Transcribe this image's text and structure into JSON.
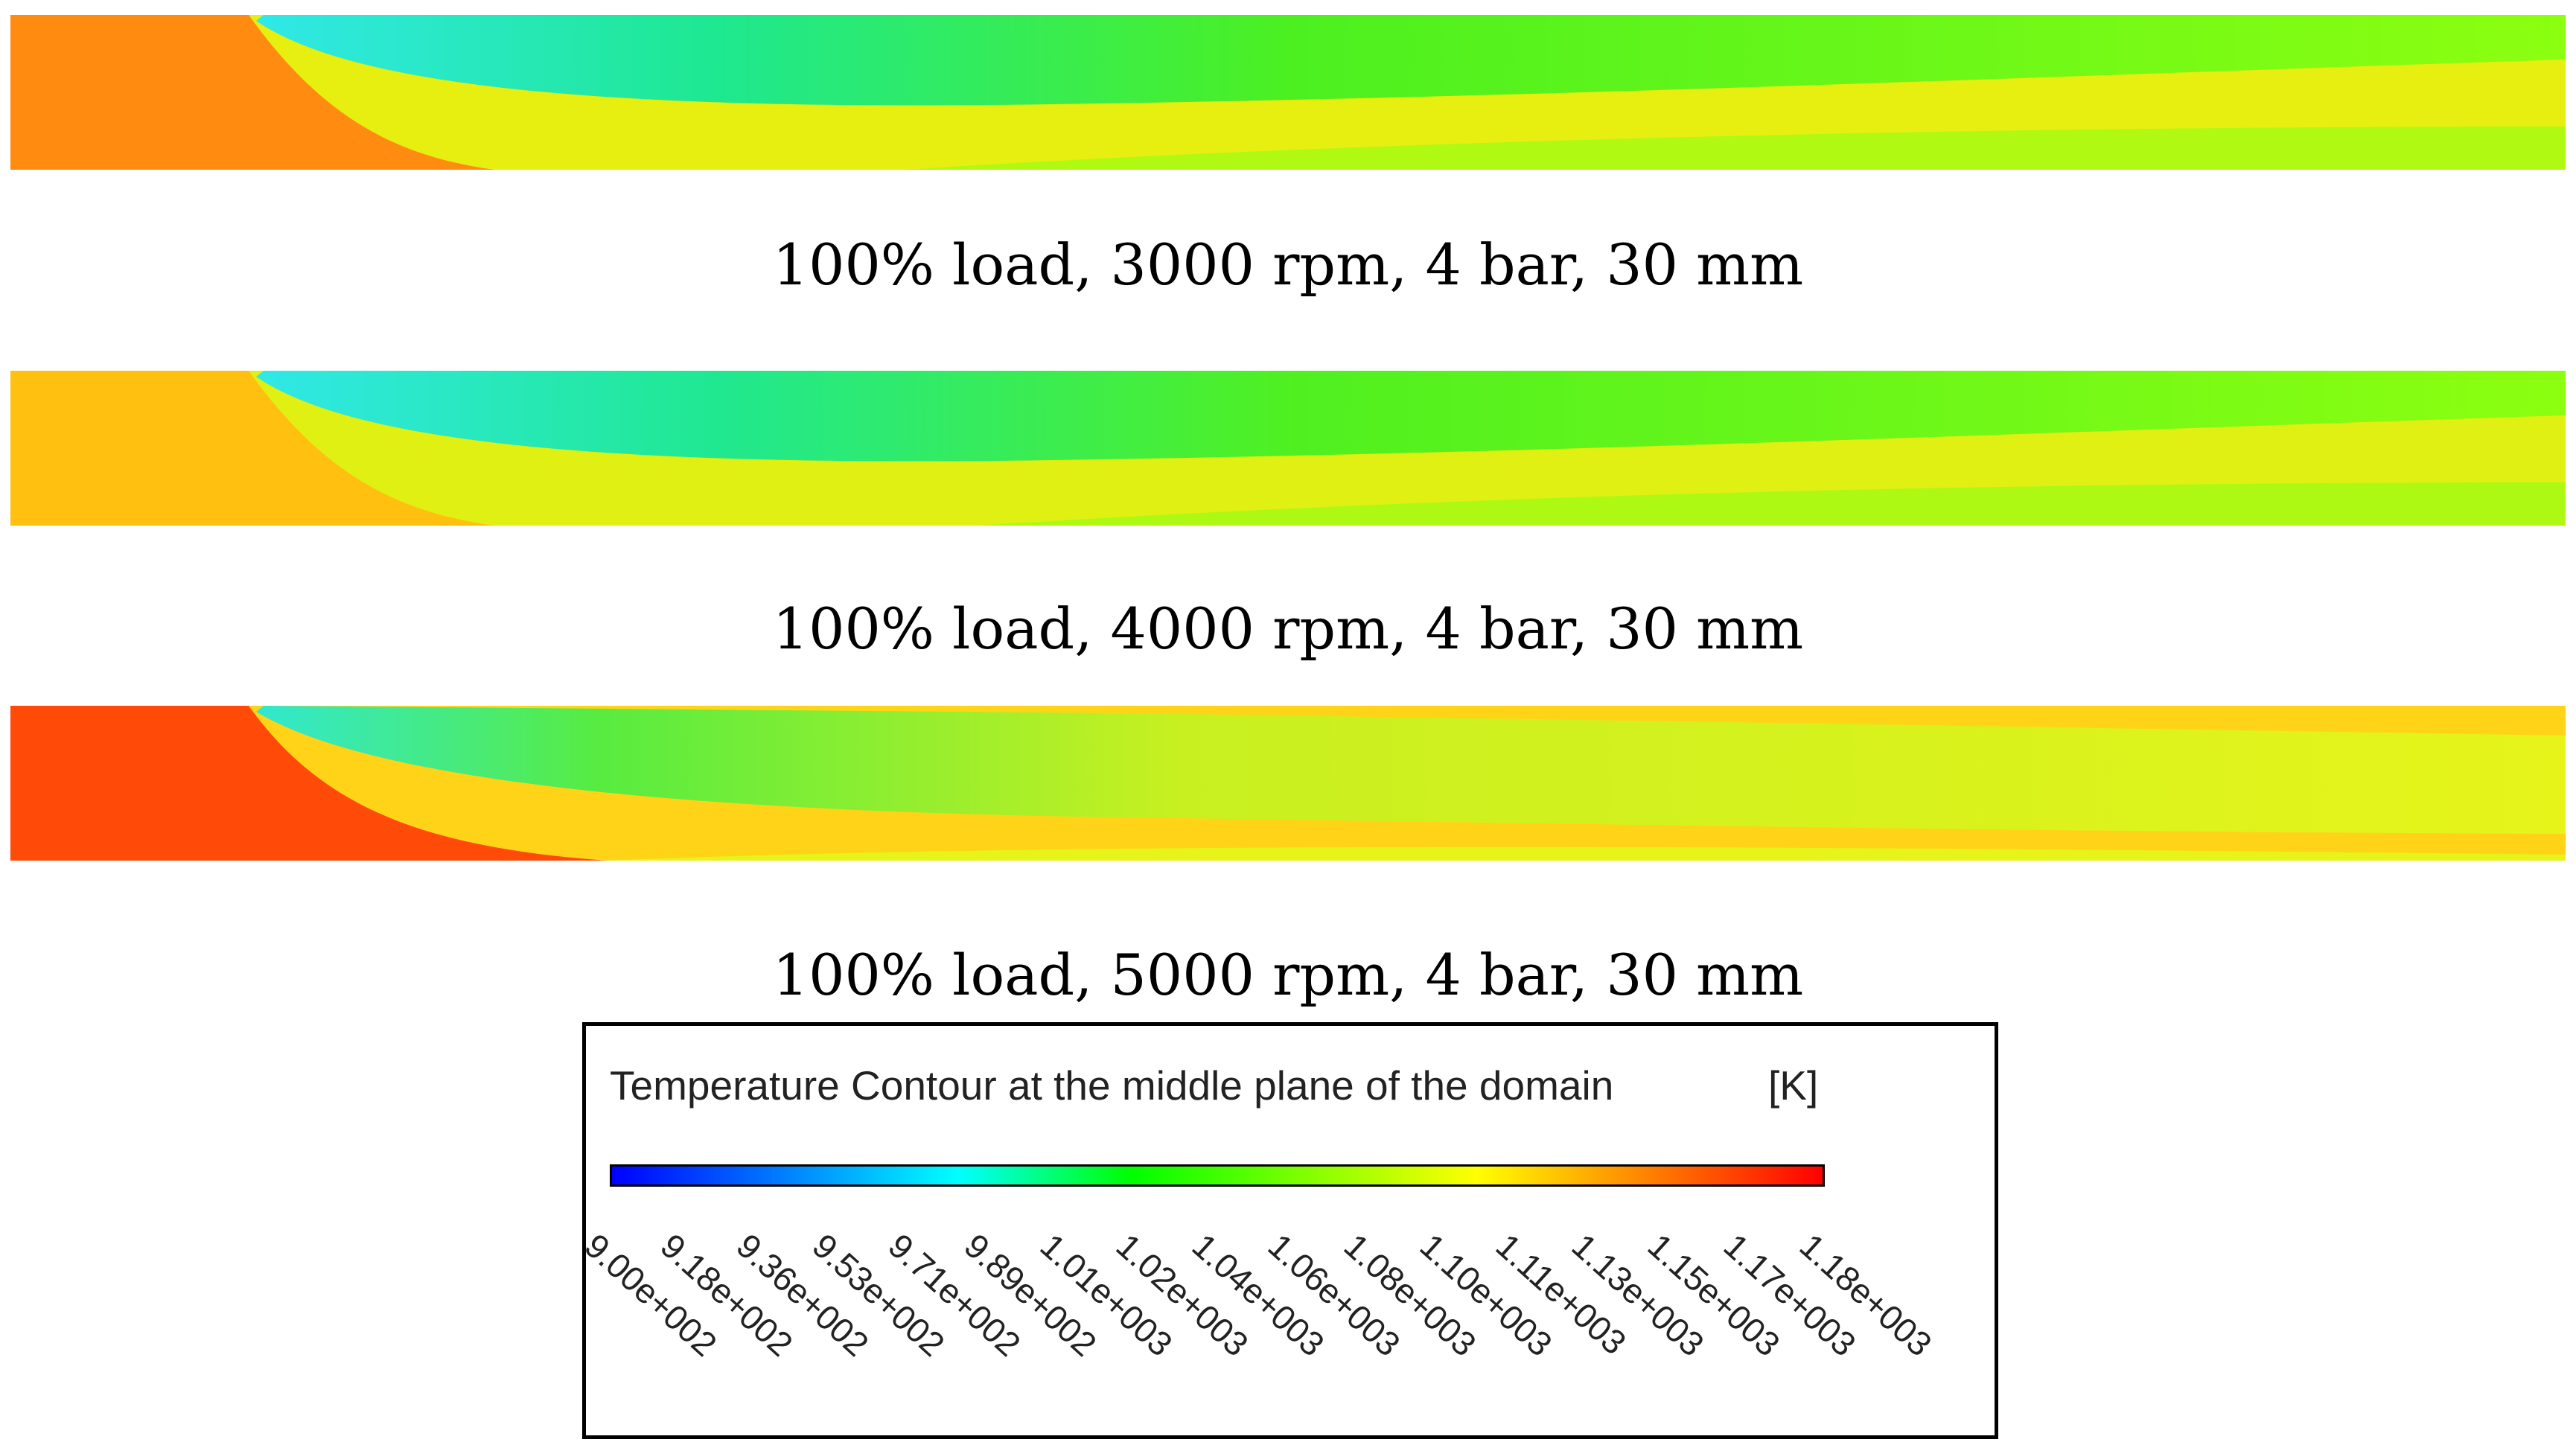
{
  "panels": [
    {
      "caption": "100% load, 3000 rpm, 4 bar, 30 mm",
      "inlet_color": "#ff8c10",
      "outer_color": "#e6ef10"
    },
    {
      "caption": "100% load, 4000 rpm, 4 bar, 30 mm",
      "inlet_color": "#ffc010",
      "outer_color": "#dff012"
    },
    {
      "caption": "100% load, 5000 rpm, 4 bar, 30 mm",
      "inlet_color": "#ff4a08",
      "outer_color": "#ffd418"
    }
  ],
  "legend": {
    "title": "Temperature Contour at the middle plane of the domain",
    "unit": "[K]",
    "ticks": [
      "9.00e+002",
      "9.18e+002",
      "9.36e+002",
      "9.53e+002",
      "9.71e+002",
      "9.89e+002",
      "1.01e+003",
      "1.02e+003",
      "1.04e+003",
      "1.06e+003",
      "1.08e+003",
      "1.10e+003",
      "1.11e+003",
      "1.13e+003",
      "1.15e+003",
      "1.17e+003",
      "1.18e+003"
    ],
    "colormap": [
      "#0000ff",
      "#0080ff",
      "#00ffff",
      "#00ff00",
      "#80ff00",
      "#ffff00",
      "#ff8000",
      "#ff0000"
    ]
  }
}
